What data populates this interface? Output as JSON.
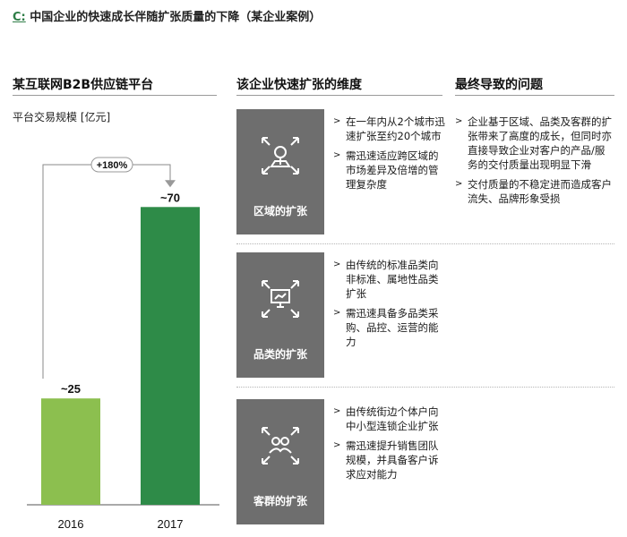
{
  "page_title": {
    "prefix": "C:",
    "text": "中国企业的快速成长伴随扩张质量的下降（某企业案例）"
  },
  "columns": {
    "chart_head": "某互联网B2B供应链平台",
    "dims_head": "该企业快速扩张的维度",
    "issues_head": "最终导致的问题"
  },
  "chart_data": {
    "type": "bar",
    "title": "",
    "ylabel": "平台交易规模 [亿元]",
    "categories": [
      "2016",
      "2017"
    ],
    "values": [
      25,
      70
    ],
    "value_labels": [
      "~25",
      "~70"
    ],
    "colors": [
      "#8cbf4f",
      "#2e8b48"
    ],
    "growth_label": "+180%",
    "ylim": [
      0,
      85
    ]
  },
  "dimensions": [
    {
      "caption": "区域的扩张",
      "icon": "map-pin-expand-icon",
      "bullets": [
        "在一年内从2个城市迅速扩张至约20个城市",
        "需迅速适应跨区域的市场差异及倍增的管理复杂度"
      ]
    },
    {
      "caption": "品类的扩张",
      "icon": "monitor-expand-icon",
      "bullets": [
        "由传统的标准品类向非标准、属地性品类扩张",
        "需迅速具备多品类采购、品控、运营的能力"
      ]
    },
    {
      "caption": "客群的扩张",
      "icon": "people-expand-icon",
      "bullets": [
        "由传统街边个体户向中小型连锁企业扩张",
        "需迅速提升销售团队规模，并具备客户诉求应对能力"
      ]
    }
  ],
  "issues": [
    "企业基于区域、品类及客群的扩张带来了高度的成长，但同时亦直接导致企业对客户的产品/服务的交付质量出现明显下滑",
    "交付质量的不稳定进而造成客户流失、品牌形象受损"
  ],
  "bullet_marker": ">"
}
